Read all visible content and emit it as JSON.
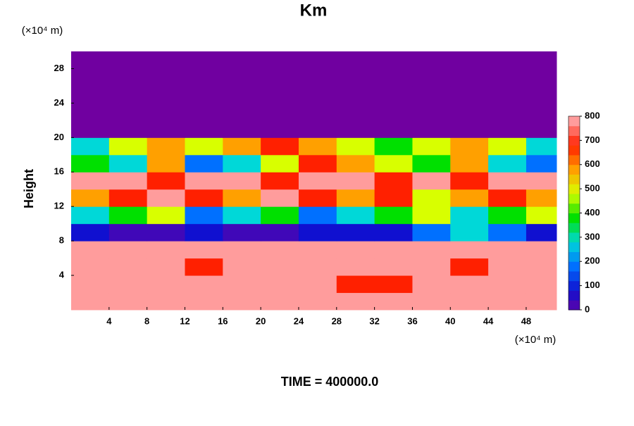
{
  "chart_data": {
    "type": "heatmap",
    "title": "Km",
    "y_unit": "(×10⁴ m)",
    "x_unit": "(×10⁴ m)",
    "ylabel": "Height",
    "footer": "TIME = 400000.0",
    "x_edges": [
      0,
      4,
      8,
      12,
      16,
      20,
      24,
      28,
      32,
      36,
      40,
      44,
      48,
      51.2
    ],
    "y_edges": [
      0,
      2,
      4,
      6,
      8,
      10,
      12,
      14,
      16,
      18,
      20,
      22,
      24,
      26,
      28,
      30
    ],
    "z": [
      [
        800,
        800,
        800,
        800,
        800,
        800,
        800,
        800,
        800,
        800,
        800,
        800,
        800
      ],
      [
        800,
        800,
        800,
        800,
        800,
        800,
        800,
        700,
        700,
        800,
        800,
        800,
        800
      ],
      [
        800,
        800,
        800,
        700,
        800,
        800,
        800,
        800,
        800,
        800,
        700,
        800,
        800
      ],
      [
        800,
        800,
        800,
        800,
        800,
        800,
        800,
        800,
        800,
        800,
        800,
        800,
        800
      ],
      [
        100,
        50,
        50,
        100,
        50,
        50,
        100,
        100,
        100,
        200,
        300,
        200,
        100
      ],
      [
        300,
        400,
        500,
        200,
        300,
        400,
        200,
        300,
        400,
        500,
        300,
        400,
        500
      ],
      [
        600,
        700,
        800,
        700,
        600,
        800,
        700,
        600,
        700,
        500,
        600,
        700,
        600
      ],
      [
        800,
        800,
        700,
        800,
        800,
        700,
        800,
        800,
        700,
        800,
        700,
        800,
        800
      ],
      [
        400,
        300,
        600,
        200,
        300,
        500,
        700,
        600,
        500,
        400,
        600,
        300,
        200
      ],
      [
        300,
        500,
        600,
        500,
        600,
        700,
        600,
        500,
        400,
        500,
        600,
        500,
        300
      ],
      [
        0,
        0,
        0,
        0,
        0,
        0,
        0,
        0,
        0,
        0,
        0,
        0,
        0
      ],
      [
        0,
        0,
        0,
        0,
        0,
        0,
        0,
        0,
        0,
        0,
        0,
        0,
        0
      ],
      [
        0,
        0,
        0,
        0,
        0,
        0,
        0,
        0,
        0,
        0,
        0,
        0,
        0
      ],
      [
        0,
        0,
        0,
        0,
        0,
        0,
        0,
        0,
        0,
        0,
        0,
        0,
        0
      ],
      [
        0,
        0,
        0,
        0,
        0,
        0,
        0,
        0,
        0,
        0,
        0,
        0,
        0
      ]
    ],
    "xlim": [
      0,
      51.2
    ],
    "ylim": [
      0,
      30
    ],
    "xticks": [
      4,
      8,
      12,
      16,
      20,
      24,
      28,
      32,
      36,
      40,
      44,
      48
    ],
    "yticks": [
      4,
      8,
      12,
      16,
      20,
      24,
      28
    ],
    "clim": [
      0,
      800
    ],
    "cticks": [
      0,
      100,
      200,
      300,
      400,
      500,
      600,
      700,
      800
    ],
    "colorscale": [
      [
        0,
        "#7000a0"
      ],
      [
        100,
        "#1010d0"
      ],
      [
        200,
        "#0070ff"
      ],
      [
        300,
        "#00d8d8"
      ],
      [
        400,
        "#00e000"
      ],
      [
        500,
        "#d8ff00"
      ],
      [
        600,
        "#ffa000"
      ],
      [
        700,
        "#ff2000"
      ],
      [
        800,
        "#ff9c9c"
      ]
    ]
  }
}
